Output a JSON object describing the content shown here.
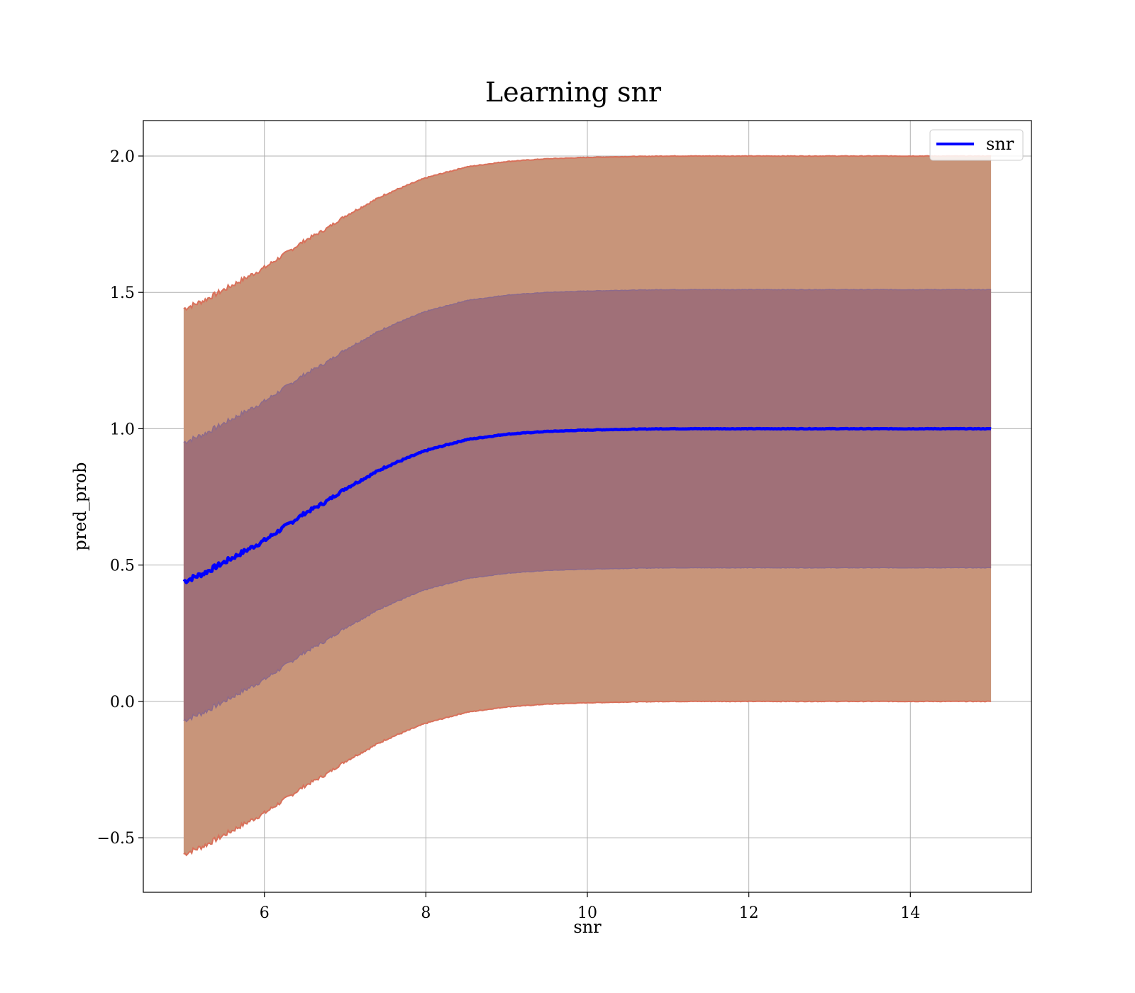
{
  "chart_data": {
    "type": "line",
    "title": "Learning snr",
    "xlabel": "snr",
    "ylabel": "pred_prob",
    "xlim": [
      4.5,
      15.5
    ],
    "ylim": [
      -0.7,
      2.13
    ],
    "xticks": [
      6,
      8,
      10,
      12,
      14
    ],
    "yticks": [
      -0.5,
      0.0,
      0.5,
      1.0,
      1.5,
      2.0
    ],
    "xtick_labels": [
      "6",
      "8",
      "10",
      "12",
      "14"
    ],
    "ytick_labels": [
      "−0.5",
      "0.0",
      "0.5",
      "1.0",
      "1.5",
      "2.0"
    ],
    "grid": true,
    "legend": {
      "position": "upper-right",
      "entries": [
        "snr"
      ]
    },
    "colors": {
      "line": "#0000ff",
      "band_outer": "#c8957a",
      "band_inner": "#a07078",
      "band_outer_edge": "#d9705a",
      "band_inner_edge": "#8c6a8c",
      "grid": "#b0b0b0"
    },
    "x": [
      5.0,
      5.25,
      5.5,
      5.75,
      6.0,
      6.25,
      6.5,
      6.75,
      7.0,
      7.25,
      7.5,
      7.75,
      8.0,
      8.25,
      8.5,
      8.75,
      9.0,
      9.5,
      10.0,
      10.5,
      11.0,
      12.0,
      13.0,
      14.0,
      15.0
    ],
    "series": [
      {
        "name": "snr",
        "values": [
          0.44,
          0.47,
          0.51,
          0.55,
          0.59,
          0.64,
          0.69,
          0.73,
          0.78,
          0.82,
          0.86,
          0.89,
          0.92,
          0.94,
          0.96,
          0.97,
          0.98,
          0.99,
          0.995,
          0.998,
          1.0,
          1.0,
          1.0,
          1.0,
          1.0
        ]
      }
    ],
    "bands": [
      {
        "level": "outer",
        "half_width": 1.0
      },
      {
        "level": "inner",
        "half_width": 0.51
      }
    ]
  }
}
